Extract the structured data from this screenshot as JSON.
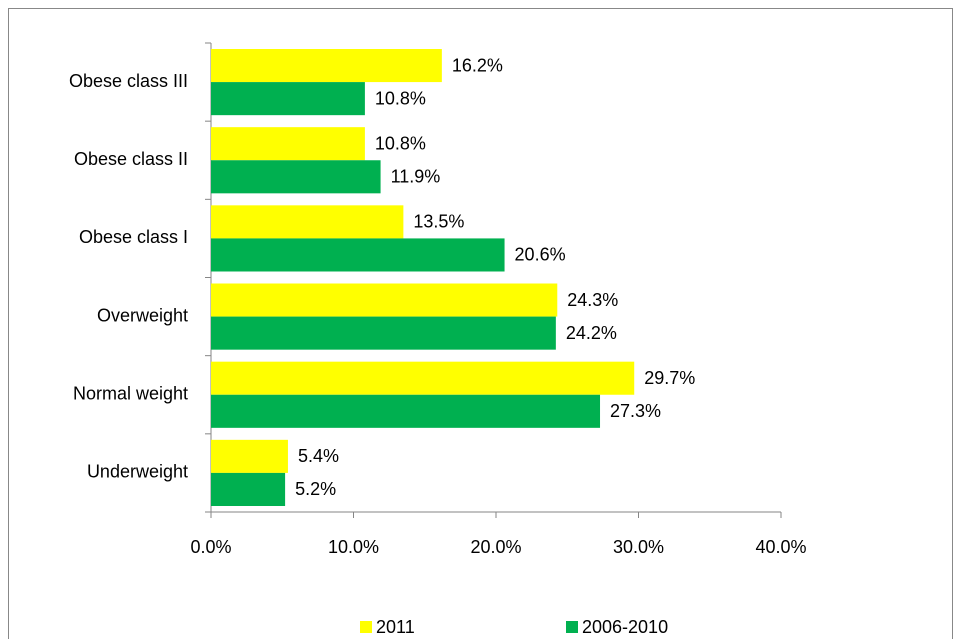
{
  "chart_data": {
    "type": "hbar",
    "categories": [
      "Underweight",
      "Normal weight",
      "Overweight",
      "Obese class I",
      "Obese class II",
      "Obese class III"
    ],
    "series": [
      {
        "name": "2011",
        "color": "#ffff00",
        "values": [
          5.4,
          29.7,
          24.3,
          13.5,
          10.8,
          16.2
        ],
        "value_labels": [
          "5.4%",
          "29.7%",
          "24.3%",
          "13.5%",
          "10.8%",
          "16.2%"
        ]
      },
      {
        "name": "2006-2010",
        "color": "#00b050",
        "values": [
          5.2,
          27.3,
          24.2,
          20.6,
          11.9,
          10.8
        ],
        "value_labels": [
          "5.2%",
          "27.3%",
          "24.2%",
          "20.6%",
          "11.9%",
          "10.8%"
        ]
      }
    ],
    "xlim": [
      0,
      40
    ],
    "xticks": [
      {
        "value": 0,
        "label": "0.0%"
      },
      {
        "value": 10,
        "label": "10.0%"
      },
      {
        "value": 20,
        "label": "20.0%"
      },
      {
        "value": 30,
        "label": "30.0%"
      },
      {
        "value": 40,
        "label": "40.0%"
      }
    ],
    "grid": false,
    "legend": "bottom"
  }
}
